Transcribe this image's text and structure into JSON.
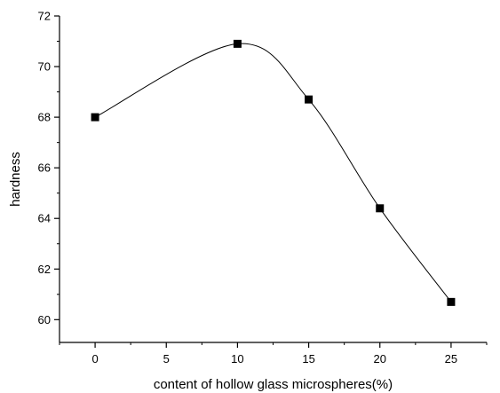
{
  "chart_data": {
    "type": "scatter",
    "title": "",
    "xlabel": "content of hollow glass microspheres(%)",
    "ylabel": "hardness",
    "xlim": [
      -2.5,
      27.5
    ],
    "ylim": [
      59.1,
      72
    ],
    "x_ticks": [
      0,
      5,
      10,
      15,
      20,
      25
    ],
    "y_ticks": [
      60,
      62,
      64,
      66,
      68,
      70,
      72
    ],
    "grid": false,
    "legend": "none",
    "smooth_fit_curve": true,
    "series": [
      {
        "marker": "square",
        "color": "#000000",
        "x": [
          0,
          10,
          15,
          20,
          25
        ],
        "y": [
          68.0,
          70.9,
          68.7,
          64.4,
          60.7
        ]
      }
    ]
  }
}
